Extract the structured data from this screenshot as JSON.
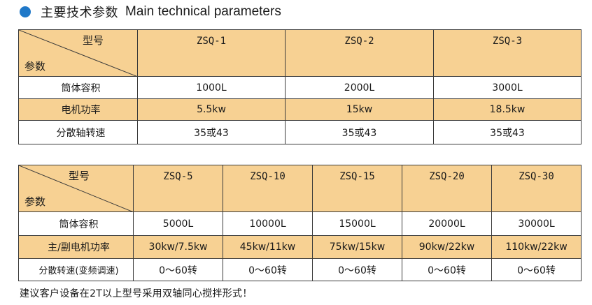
{
  "header": {
    "title_cn": "主要技术参数",
    "title_en": "Main technical parameters"
  },
  "table1": {
    "corner_top": "型号",
    "corner_bottom": "参数",
    "models": [
      "ZSQ-1",
      "ZSQ-2",
      "ZSQ-3"
    ],
    "rows": [
      {
        "label": "筒体容积",
        "values": [
          "1000L",
          "2000L",
          "3000L"
        ]
      },
      {
        "label": "电机功率",
        "values": [
          "5.5kw",
          "15kw",
          "18.5kw"
        ]
      },
      {
        "label": "分散轴转速",
        "values": [
          "35或43",
          "35或43",
          "35或43"
        ]
      }
    ]
  },
  "table2": {
    "corner_top": "型号",
    "corner_bottom": "参数",
    "models": [
      "ZSQ-5",
      "ZSQ-10",
      "ZSQ-15",
      "ZSQ-20",
      "ZSQ-30"
    ],
    "rows": [
      {
        "label": "筒体容积",
        "values": [
          "5000L",
          "10000L",
          "15000L",
          "20000L",
          "30000L"
        ]
      },
      {
        "label": "主/副电机功率",
        "values": [
          "30kw/7.5kw",
          "45kw/11kw",
          "75kw/15kw",
          "90kw/22kw",
          "110kw/22kw"
        ]
      },
      {
        "label": "分散转速(变频调速)",
        "values": [
          "0～60转",
          "0～60转",
          "0～60转",
          "0～60转",
          "0～60转"
        ]
      }
    ]
  },
  "footer": {
    "note": "建议客户设备在2T以上型号采用双轴同心搅拌形式！"
  },
  "colors": {
    "accent_dot": "#1f78c8",
    "header_fill": "#f7d193"
  }
}
